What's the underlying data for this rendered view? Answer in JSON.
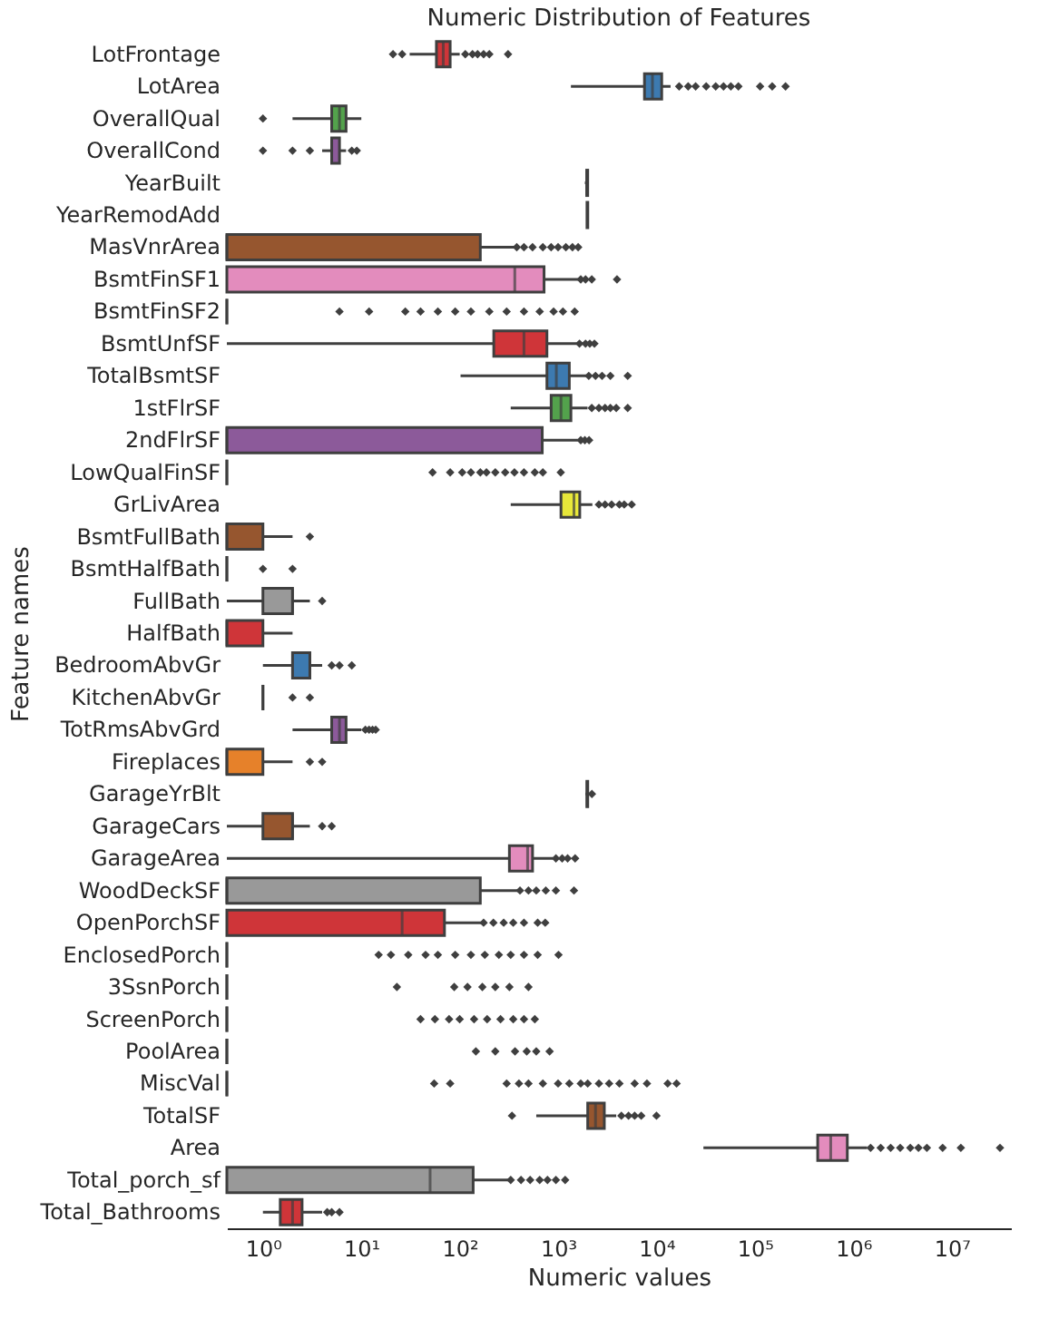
{
  "chart_data": {
    "type": "box",
    "title": "Numeric Distribution of Features",
    "xlabel": "Numeric values",
    "ylabel": "Feature names",
    "orientation": "horizontal",
    "log": "x",
    "marker": "diamond",
    "xlim": [
      0.43,
      40000000
    ],
    "xticks": [
      {
        "value": 1,
        "label": "10⁰"
      },
      {
        "value": 10,
        "label": "10¹"
      },
      {
        "value": 100,
        "label": "10²"
      },
      {
        "value": 1000,
        "label": "10³"
      },
      {
        "value": 10000,
        "label": "10⁴"
      },
      {
        "value": 100000,
        "label": "10⁵"
      },
      {
        "value": 1000000,
        "label": "10⁶"
      },
      {
        "value": 10000000,
        "label": "10⁷"
      }
    ],
    "categories": [
      "LotFrontage",
      "LotArea",
      "OverallQual",
      "OverallCond",
      "YearBuilt",
      "YearRemodAdd",
      "MasVnrArea",
      "BsmtFinSF1",
      "BsmtFinSF2",
      "BsmtUnfSF",
      "TotalBsmtSF",
      "1stFlrSF",
      "2ndFlrSF",
      "LowQualFinSF",
      "GrLivArea",
      "BsmtFullBath",
      "BsmtHalfBath",
      "FullBath",
      "HalfBath",
      "BedroomAbvGr",
      "KitchenAbvGr",
      "TotRmsAbvGrd",
      "Fireplaces",
      "GarageYrBlt",
      "GarageCars",
      "GarageArea",
      "WoodDeckSF",
      "OpenPorchSF",
      "EnclosedPorch",
      "3SsnPorch",
      "ScreenPorch",
      "PoolArea",
      "MiscVal",
      "TotalSF",
      "Area",
      "Total_porch_sf",
      "Total_Bathrooms"
    ],
    "colors": [
      "#cf3539",
      "#3d7ab0",
      "#53a24c",
      "#8c5a9a",
      "#e6812a",
      "#e8e83a",
      "#96562f",
      "#e38cbd",
      null,
      "#cf3539",
      "#3d7ab0",
      "#53a24c",
      "#8c5a9a",
      null,
      "#e8e83a",
      "#96562f",
      null,
      "#999999",
      "#cf3539",
      "#3d7ab0",
      null,
      "#8c5a9a",
      "#e6812a",
      "#e8e83a",
      "#96562f",
      "#e38cbd",
      "#999999",
      "#cf3539",
      null,
      null,
      null,
      null,
      null,
      "#96562f",
      "#e38cbd",
      "#999999",
      "#cf3539"
    ],
    "boxes": [
      {
        "low": 31,
        "q1": 58,
        "median": 68,
        "q3": 80,
        "high": 100,
        "outliers": [
          21,
          26,
          114,
          135,
          152,
          175,
          200,
          310
        ]
      },
      {
        "low": 1350,
        "q1": 7550,
        "median": 9100,
        "q3": 11300,
        "high": 13900,
        "outliers": [
          17000,
          21000,
          25000,
          32000,
          40000,
          48000,
          57000,
          68000,
          113000,
          150000,
          205000
        ]
      },
      {
        "low": 2,
        "q1": 5,
        "median": 6,
        "q3": 7,
        "high": 10,
        "outliers": [
          1
        ]
      },
      {
        "low": 4,
        "q1": 5,
        "median": 5,
        "q3": 6,
        "high": 7,
        "outliers": [
          1,
          2,
          3,
          8,
          9
        ]
      },
      {
        "low": 1872,
        "q1": 1954,
        "median": 1973,
        "q3": 2000,
        "high": 2010
      },
      {
        "low": 1950,
        "q1": 1967,
        "median": 1994,
        "q3": 2004,
        "high": 2010
      },
      {
        "low": 0.43,
        "q1": 0.43,
        "median": 0.43,
        "q3": 162,
        "high": 370,
        "outliers": [
          380,
          450,
          550,
          700,
          850,
          1000,
          1200,
          1400,
          1600
        ]
      },
      {
        "low": 0.43,
        "q1": 0.43,
        "median": 363,
        "q3": 720,
        "high": 1660,
        "outliers": [
          1700,
          1900,
          2200,
          3970
        ]
      },
      {
        "low": 0.43,
        "q1": 0.43,
        "median": 0.43,
        "q3": 0.43,
        "high": 0.43,
        "outliers": [
          6,
          12,
          28,
          40,
          60,
          90,
          130,
          200,
          300,
          450,
          650,
          900,
          1120,
          1474
        ]
      },
      {
        "low": 0.43,
        "q1": 222,
        "median": 450,
        "q3": 770,
        "high": 1550,
        "outliers": [
          1650,
          1900,
          2100,
          2340
        ]
      },
      {
        "low": 102,
        "q1": 770,
        "median": 960,
        "q3": 1300,
        "high": 1940,
        "outliers": [
          2050,
          2400,
          2800,
          3400,
          5100
        ]
      },
      {
        "low": 330,
        "q1": 850,
        "median": 1070,
        "q3": 1350,
        "high": 1990,
        "outliers": [
          2200,
          2600,
          3000,
          3400,
          3900,
          5100
        ]
      },
      {
        "low": 0.43,
        "q1": 0.43,
        "median": 0.43,
        "q3": 690,
        "high": 1590,
        "outliers": [
          1700,
          1870,
          2065
        ]
      },
      {
        "low": 0.43,
        "q1": 0.43,
        "median": 0.43,
        "q3": 0.43,
        "high": 0.43,
        "outliers": [
          53,
          80,
          106,
          130,
          162,
          187,
          230,
          290,
          360,
          450,
          580,
          700,
          1064
        ]
      },
      {
        "low": 330,
        "q1": 1070,
        "median": 1450,
        "q3": 1660,
        "high": 2230,
        "outliers": [
          2600,
          3000,
          3500,
          4200,
          4700,
          5600
        ]
      },
      {
        "low": 0.43,
        "q1": 0.43,
        "median": 0.43,
        "q3": 1,
        "high": 2,
        "outliers": [
          3
        ]
      },
      {
        "low": 0.43,
        "q1": 0.43,
        "median": 0.43,
        "q3": 0.43,
        "high": 0.43,
        "outliers": [
          1,
          2
        ]
      },
      {
        "low": 0.43,
        "q1": 1,
        "median": 2,
        "q3": 2,
        "high": 3,
        "outliers": [
          4
        ]
      },
      {
        "low": 0.43,
        "q1": 0.43,
        "median": 0.43,
        "q3": 1,
        "high": 2
      },
      {
        "low": 1,
        "q1": 2,
        "median": 3,
        "q3": 3,
        "high": 4,
        "outliers": [
          5,
          6,
          8
        ]
      },
      {
        "low": 1,
        "q1": 1,
        "median": 1,
        "q3": 1,
        "high": 1,
        "outliers": [
          2,
          3
        ]
      },
      {
        "low": 2,
        "q1": 5,
        "median": 6,
        "q3": 7,
        "high": 10,
        "outliers": [
          11,
          12,
          13,
          14
        ]
      },
      {
        "low": 0.43,
        "q1": 0.43,
        "median": 0.43,
        "q3": 1,
        "high": 2,
        "outliers": [
          3,
          4
        ]
      },
      {
        "low": 1895,
        "q1": 1961,
        "median": 1980,
        "q3": 2002,
        "high": 2010,
        "outliers": [
          2207
        ]
      },
      {
        "low": 0.43,
        "q1": 1,
        "median": 2,
        "q3": 2,
        "high": 3,
        "outliers": [
          4,
          5
        ]
      },
      {
        "low": 0.43,
        "q1": 320,
        "median": 490,
        "q3": 550,
        "high": 890,
        "outliers": [
          950,
          1100,
          1250,
          1490
        ]
      },
      {
        "low": 0.43,
        "q1": 0.43,
        "median": 0.43,
        "q3": 162,
        "high": 390,
        "outliers": [
          410,
          500,
          600,
          750,
          950,
          1450
        ]
      },
      {
        "low": 0.43,
        "q1": 0.43,
        "median": 26,
        "q3": 70,
        "high": 167,
        "outliers": [
          175,
          220,
          280,
          350,
          450,
          620,
          740
        ]
      },
      {
        "low": 0.43,
        "q1": 0.43,
        "median": 0.43,
        "q3": 0.43,
        "high": 0.43,
        "outliers": [
          15,
          20,
          30,
          45,
          60,
          90,
          130,
          180,
          250,
          330,
          450,
          620,
          1010
        ]
      },
      {
        "low": 0.43,
        "q1": 0.43,
        "median": 0.43,
        "q3": 0.43,
        "high": 0.43,
        "outliers": [
          23,
          88,
          120,
          170,
          230,
          320,
          500
        ]
      },
      {
        "low": 0.43,
        "q1": 0.43,
        "median": 0.43,
        "q3": 0.43,
        "high": 0.43,
        "outliers": [
          40,
          56,
          78,
          100,
          140,
          190,
          260,
          350,
          450,
          580
        ]
      },
      {
        "low": 0.43,
        "q1": 0.43,
        "median": 0.43,
        "q3": 0.43,
        "high": 0.43,
        "outliers": [
          146,
          230,
          365,
          480,
          600,
          820
        ]
      },
      {
        "low": 0.43,
        "q1": 0.43,
        "median": 0.43,
        "q3": 0.43,
        "high": 0.43,
        "outliers": [
          55,
          80,
          300,
          400,
          500,
          700,
          1000,
          1300,
          1700,
          2000,
          2600,
          3300,
          4200,
          6000,
          8000,
          13000,
          16000
        ]
      },
      {
        "low": 600,
        "q1": 2000,
        "median": 2400,
        "q3": 2950,
        "high": 3900,
        "outliers": [
          340,
          4400,
          5200,
          6000,
          7000,
          10000
        ]
      },
      {
        "low": 30000,
        "q1": 435000,
        "median": 590000,
        "q3": 870000,
        "high": 1380000,
        "outliers": [
          1500000,
          1900000,
          2400000,
          3000000,
          3800000,
          4600000,
          5600000,
          8100000,
          12400000,
          31000000
        ]
      },
      {
        "low": 0.43,
        "q1": 0.43,
        "median": 50,
        "q3": 137,
        "high": 316,
        "outliers": [
          330,
          420,
          520,
          650,
          780,
          950,
          1180
        ]
      },
      {
        "low": 1,
        "q1": 1.5,
        "median": 2,
        "q3": 2.5,
        "high": 4,
        "outliers": [
          4.5,
          5,
          6
        ]
      }
    ]
  }
}
